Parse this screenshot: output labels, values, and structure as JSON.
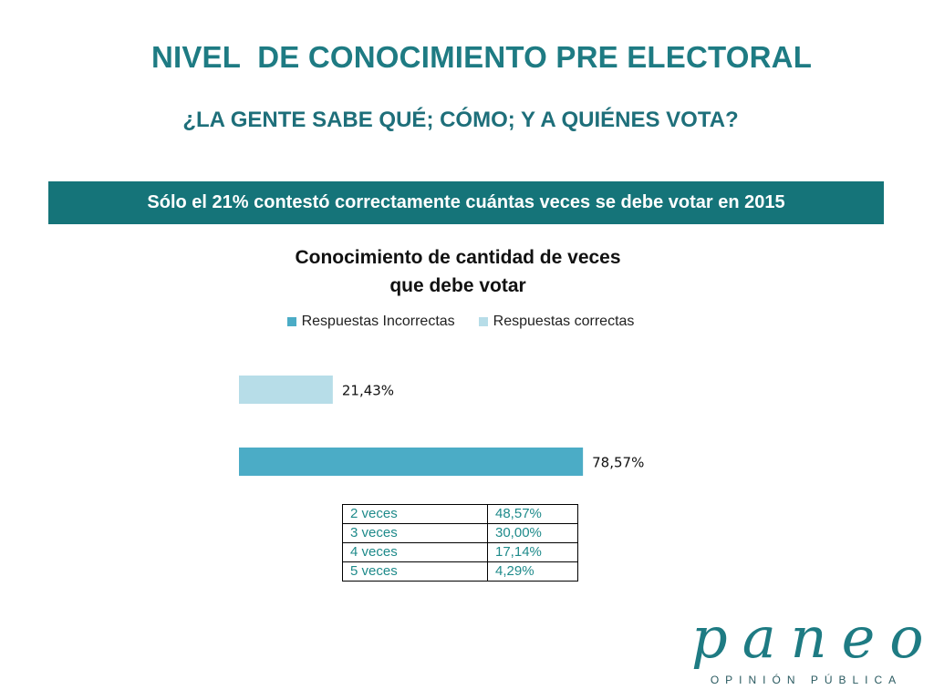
{
  "slide": {
    "title": "NIVEL  DE CONOCIMIENTO PRE ELECTORAL",
    "subtitle": "¿LA GENTE SABE QUÉ; CÓMO; Y A QUIÉNES VOTA?",
    "banner": "Sólo el 21% contestó correctamente cuántas veces se debe votar en 2015"
  },
  "chart_data": {
    "type": "bar",
    "orientation": "horizontal",
    "title_line1": "Conocimiento de cantidad de veces",
    "title_line2": "que debe votar",
    "legend_position": "top",
    "grid": false,
    "xlim": [
      0,
      100
    ],
    "series": [
      {
        "name": "Respuestas Incorrectas",
        "value": 78.57,
        "label": "78,57%",
        "color": "#4bacc6"
      },
      {
        "name": "Respuestas correctas",
        "value": 21.43,
        "label": "21,43%",
        "color": "#b7dde8"
      }
    ]
  },
  "breakdown": {
    "rows": [
      {
        "label": "2 veces",
        "value": "48,57%"
      },
      {
        "label": "3 veces",
        "value": "30,00%"
      },
      {
        "label": "4 veces",
        "value": "17,14%"
      },
      {
        "label": "5 veces",
        "value": "4,29%"
      }
    ]
  },
  "logo": {
    "word": "paneo",
    "tagline": "OPINIÓN PÚBLICA"
  }
}
